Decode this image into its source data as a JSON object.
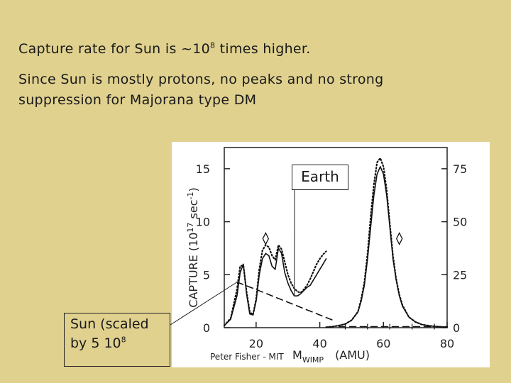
{
  "slide": {
    "line1_text": "Capture rate for Sun is ~10",
    "line1_sup": "8",
    "line1_end": " times higher.",
    "line2": "Since Sun is mostly protons, no peaks and no strong suppression for Majorana type DM",
    "earth_label": "Earth",
    "sun_label_1": "Sun (scaled",
    "sun_label_2": "by 5 10",
    "sun_label_sup": "8",
    "credit": "Peter Fisher - MIT"
  },
  "chart_data": {
    "type": "line",
    "x_range": [
      10,
      80
    ],
    "xticks": [
      20,
      40,
      60,
      80
    ],
    "y_left_range": [
      0,
      17
    ],
    "y_left_ticks": [
      0,
      5,
      10,
      15
    ],
    "y_right_ticks": [
      0,
      25,
      50,
      75
    ],
    "ylabel": "CAPTURE",
    "ylabel_unit_base": "(10",
    "ylabel_unit_sup1": "17",
    "ylabel_unit_mid": " sec",
    "ylabel_unit_sup2": "-1",
    "ylabel_unit_end": ")",
    "xlabel_prefix": "M",
    "xlabel_sub": "WIMP",
    "xlabel_unit": "(AMU)",
    "markers": [
      {
        "label": "◊",
        "x": 23,
        "y": 8.4
      },
      {
        "label": "◊",
        "x": 65,
        "y": 8.4
      }
    ],
    "series": [
      {
        "style": "solid",
        "x": [
          10,
          12,
          14,
          15,
          16,
          17,
          18,
          19,
          20,
          21,
          22,
          23,
          24,
          25,
          26,
          27,
          28,
          29,
          30,
          31,
          32,
          33,
          34,
          35,
          36,
          37,
          38,
          39,
          40,
          41,
          42
        ],
        "y": [
          0.2,
          0.8,
          3.0,
          5.2,
          6.0,
          3.2,
          1.3,
          1.2,
          2.5,
          5.0,
          6.5,
          7.0,
          6.8,
          5.8,
          5.5,
          7.5,
          7.0,
          5.2,
          4.2,
          3.5,
          3.0,
          3.0,
          3.2,
          3.5,
          3.8,
          4.0,
          4.5,
          5.0,
          5.5,
          6.0,
          6.5
        ]
      },
      {
        "style": "dotted",
        "x": [
          10,
          12,
          14,
          15,
          16,
          17,
          18,
          19,
          20,
          21,
          22,
          23,
          24,
          25,
          26,
          27,
          28,
          29,
          30,
          31,
          32,
          33,
          34,
          35,
          36,
          37,
          38,
          39,
          40,
          41,
          42
        ],
        "y": [
          0.2,
          0.9,
          3.6,
          5.8,
          5.9,
          3.4,
          1.5,
          1.2,
          2.7,
          5.5,
          7.3,
          7.8,
          7.6,
          6.8,
          6.4,
          7.8,
          7.4,
          6.2,
          5.0,
          4.2,
          3.7,
          3.4,
          3.3,
          3.6,
          4.0,
          4.6,
          5.3,
          6.0,
          6.5,
          6.9,
          7.2
        ]
      },
      {
        "style": "solid",
        "x": [
          42,
          44,
          46,
          48,
          50,
          52,
          53,
          54,
          55,
          56,
          57,
          58,
          59,
          60,
          61,
          62,
          63,
          64,
          65,
          66,
          68,
          70,
          72,
          74,
          76,
          78,
          80
        ],
        "y": [
          0.05,
          0.1,
          0.2,
          0.35,
          0.7,
          1.5,
          2.5,
          4.0,
          6.5,
          9.5,
          12.5,
          14.5,
          15.2,
          14.5,
          12.5,
          9.5,
          6.5,
          4.5,
          3.0,
          2.0,
          1.0,
          0.55,
          0.3,
          0.2,
          0.12,
          0.08,
          0.05
        ]
      },
      {
        "style": "dotted",
        "x": [
          42,
          44,
          46,
          48,
          50,
          52,
          53,
          54,
          55,
          56,
          57,
          58,
          59,
          60,
          61,
          62,
          63,
          64,
          65,
          66,
          68,
          70,
          72,
          74,
          76,
          78,
          80
        ],
        "y": [
          0.05,
          0.1,
          0.2,
          0.35,
          0.7,
          1.5,
          2.7,
          4.3,
          7.0,
          10.5,
          13.5,
          15.6,
          16.0,
          15.2,
          13.0,
          9.8,
          6.8,
          4.6,
          3.1,
          2.1,
          1.0,
          0.55,
          0.3,
          0.2,
          0.12,
          0.08,
          0.05
        ]
      },
      {
        "style": "dashed",
        "x": [
          14,
          20,
          30,
          40,
          45
        ],
        "y": [
          4.3,
          3.6,
          2.4,
          1.2,
          0.6
        ]
      },
      {
        "style": "dashed",
        "x": [
          46,
          55,
          65,
          75,
          80
        ],
        "y": [
          0.1,
          0.1,
          0.1,
          0.1,
          0.1
        ]
      }
    ]
  }
}
